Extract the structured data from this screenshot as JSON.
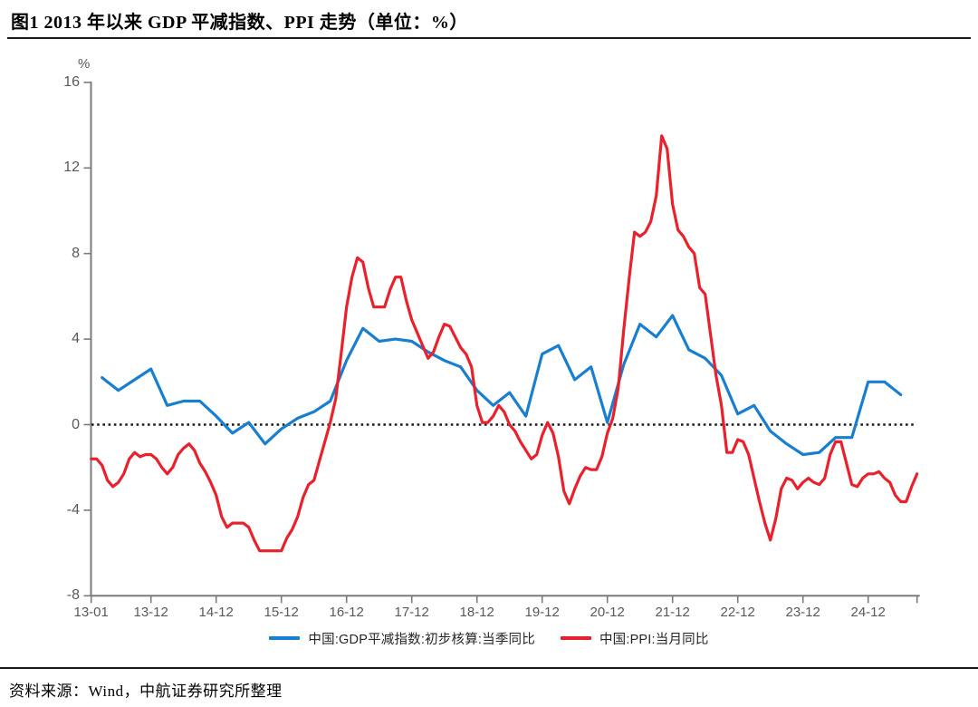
{
  "title": "图1  2013 年以来 GDP 平减指数、PPI 走势（单位：%）",
  "source": "资料来源：Wind，中航证券研究所整理",
  "chart_data": {
    "type": "line",
    "unit_label": "%",
    "ylim": [
      -8,
      16
    ],
    "yticks": [
      16,
      12,
      8,
      4,
      0,
      -4,
      -8
    ],
    "xticks": [
      "13-01",
      "13-12",
      "14-12",
      "15-12",
      "16-12",
      "17-12",
      "18-12",
      "19-12",
      "20-12",
      "21-12",
      "22-12",
      "23-12",
      "24-12"
    ],
    "zero_line": true,
    "grid": false,
    "legend_position": "bottom",
    "axis_color": "#7b7b7b",
    "tick_label_color": "#595959",
    "zero_line_color": "#1a1a1a",
    "series": [
      {
        "name": "中国:GDP平减指数:初步核算:当季同比",
        "color": "#187FD0",
        "freq": "quarterly",
        "start": "2013Q1",
        "values": [
          2.2,
          1.6,
          2.1,
          2.6,
          0.9,
          1.1,
          1.1,
          0.4,
          -0.4,
          0.1,
          -0.9,
          -0.2,
          0.3,
          0.6,
          1.1,
          3.0,
          4.5,
          3.9,
          4.0,
          3.9,
          3.4,
          3.0,
          2.7,
          1.6,
          0.9,
          1.5,
          0.4,
          3.3,
          3.7,
          2.1,
          2.7,
          0.1,
          2.8,
          4.7,
          4.1,
          5.1,
          3.5,
          3.1,
          2.3,
          0.5,
          0.9,
          -0.3,
          -0.9,
          -1.4,
          -1.3,
          -0.6,
          -0.6,
          2.0,
          2.0,
          1.4
        ]
      },
      {
        "name": "中国:PPI:当月同比",
        "color": "#E9212D",
        "freq": "monthly",
        "start": "2013-01",
        "values": [
          -1.6,
          -1.6,
          -1.9,
          -2.6,
          -2.9,
          -2.7,
          -2.3,
          -1.6,
          -1.3,
          -1.5,
          -1.4,
          -1.4,
          -1.6,
          -2.0,
          -2.3,
          -2.0,
          -1.4,
          -1.1,
          -0.9,
          -1.2,
          -1.8,
          -2.2,
          -2.7,
          -3.3,
          -4.3,
          -4.8,
          -4.6,
          -4.6,
          -4.6,
          -4.8,
          -5.4,
          -5.9,
          -5.9,
          -5.9,
          -5.9,
          -5.9,
          -5.3,
          -4.9,
          -4.3,
          -3.4,
          -2.8,
          -2.6,
          -1.7,
          -0.8,
          0.1,
          1.2,
          3.3,
          5.5,
          6.9,
          7.8,
          7.6,
          6.4,
          5.5,
          5.5,
          5.5,
          6.3,
          6.9,
          6.9,
          5.8,
          4.9,
          4.3,
          3.7,
          3.1,
          3.4,
          4.1,
          4.7,
          4.6,
          4.1,
          3.6,
          3.3,
          2.7,
          0.9,
          0.1,
          0.1,
          0.4,
          0.9,
          0.6,
          0.0,
          -0.3,
          -0.8,
          -1.2,
          -1.6,
          -1.4,
          -0.5,
          0.1,
          -0.4,
          -1.5,
          -3.1,
          -3.7,
          -3.0,
          -2.4,
          -2.0,
          -2.1,
          -2.1,
          -1.5,
          -0.4,
          0.3,
          1.7,
          4.4,
          6.8,
          9.0,
          8.8,
          9.0,
          9.5,
          10.7,
          13.5,
          12.9,
          10.3,
          9.1,
          8.8,
          8.3,
          8.0,
          6.4,
          6.1,
          4.2,
          2.3,
          0.9,
          -1.3,
          -1.3,
          -0.7,
          -0.8,
          -1.4,
          -2.5,
          -3.6,
          -4.6,
          -5.4,
          -4.4,
          -3.0,
          -2.5,
          -2.6,
          -3.0,
          -2.7,
          -2.5,
          -2.7,
          -2.8,
          -2.5,
          -1.4,
          -0.8,
          -0.8,
          -1.8,
          -2.8,
          -2.9,
          -2.5,
          -2.3,
          -2.3,
          -2.2,
          -2.5,
          -2.7,
          -3.3,
          -3.6,
          -3.6,
          -2.9,
          -2.3
        ]
      }
    ]
  }
}
